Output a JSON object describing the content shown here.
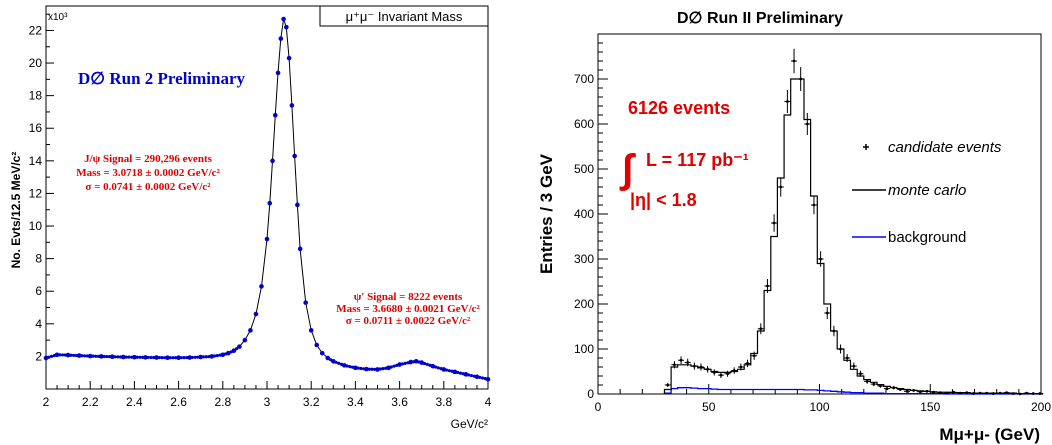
{
  "chart_data": [
    {
      "type": "scatter",
      "ylabel": "No. Evts/12.5 MeV/c²",
      "xlabel": "GeV/c²",
      "y_multiplier": "x10³",
      "title_box": "μ⁺μ⁻ Invariant Mass",
      "annotation_main": "D∅  Run 2 Preliminary",
      "xlim": [
        2,
        4
      ],
      "ylim": [
        0,
        23.5
      ],
      "xticks": [
        "2",
        "2.2",
        "2.4",
        "2.6",
        "2.8",
        "3",
        "3.2",
        "3.4",
        "3.6",
        "3.8",
        "4"
      ],
      "yticks": [
        "2",
        "4",
        "6",
        "8",
        "10",
        "12",
        "14",
        "16",
        "18",
        "20",
        "22"
      ],
      "jpsi_text": [
        "J/ψ Signal = 290,296 events",
        "Mass = 3.0718 ± 0.0002 GeV/c²",
        "σ = 0.0741 ± 0.0002 GeV/c²"
      ],
      "psi2s_text": [
        "ψ' Signal = 8222 events",
        "Mass = 3.6680 ± 0.0021 GeV/c²",
        "σ = 0.0711 ±  0.0022 GeV/c²"
      ],
      "color": "#0000cc",
      "annotation_color": "#e00000",
      "x": [
        2.0,
        2.05,
        2.1,
        2.15,
        2.2,
        2.25,
        2.3,
        2.35,
        2.4,
        2.45,
        2.5,
        2.55,
        2.6,
        2.65,
        2.7,
        2.75,
        2.8,
        2.825,
        2.85,
        2.875,
        2.9,
        2.925,
        2.95,
        2.975,
        3.0,
        3.0125,
        3.025,
        3.0375,
        3.05,
        3.0625,
        3.075,
        3.0875,
        3.1,
        3.1125,
        3.125,
        3.1375,
        3.15,
        3.175,
        3.2,
        3.225,
        3.25,
        3.275,
        3.3,
        3.35,
        3.4,
        3.45,
        3.5,
        3.55,
        3.6,
        3.65,
        3.675,
        3.7,
        3.75,
        3.8,
        3.85,
        3.9,
        3.95,
        4.0
      ],
      "y": [
        1.9,
        2.1,
        2.08,
        2.05,
        2.02,
        2.0,
        1.98,
        1.96,
        1.95,
        1.94,
        1.93,
        1.92,
        1.92,
        1.93,
        1.96,
        2.0,
        2.1,
        2.2,
        2.35,
        2.6,
        3.0,
        3.6,
        4.6,
        6.3,
        9.2,
        11.4,
        14.0,
        16.8,
        19.4,
        21.5,
        22.7,
        22.2,
        20.3,
        17.4,
        14.3,
        11.3,
        8.6,
        5.3,
        3.6,
        2.7,
        2.2,
        1.9,
        1.7,
        1.45,
        1.3,
        1.22,
        1.2,
        1.3,
        1.5,
        1.65,
        1.7,
        1.62,
        1.4,
        1.2,
        1.05,
        0.9,
        0.75,
        0.6
      ]
    },
    {
      "type": "bar",
      "title": "D∅ Run II Preliminary",
      "ylabel": "Entries / 3 GeV",
      "xlabel": "Mμ+μ- (GeV)",
      "xlim": [
        0,
        200
      ],
      "ylim": [
        0,
        800
      ],
      "xticks": [
        "0",
        "50",
        "100",
        "150",
        "200"
      ],
      "yticks": [
        "0",
        "100",
        "200",
        "300",
        "400",
        "500",
        "600",
        "700"
      ],
      "annotations": [
        "6126 events",
        "L = 117 pb⁻¹",
        "|η| < 1.8"
      ],
      "legend": [
        "candidate events",
        "monte carlo",
        "background"
      ],
      "legend_placement": "right",
      "colors": {
        "data": "#000000",
        "mc": "#000000",
        "background": "#0000ff",
        "annotation": "#e00000"
      },
      "bin_width": 3,
      "bin_start": 30,
      "mc_values": [
        10,
        60,
        65,
        65,
        62,
        58,
        55,
        50,
        48,
        48,
        50,
        55,
        65,
        90,
        140,
        230,
        350,
        480,
        620,
        700,
        700,
        610,
        440,
        290,
        200,
        140,
        100,
        75,
        55,
        40,
        32,
        26,
        21,
        17,
        14,
        12,
        10,
        8,
        7,
        6,
        5,
        4,
        4,
        3,
        3,
        3,
        2,
        2,
        2,
        2,
        2,
        2,
        2,
        1,
        1,
        1,
        1
      ],
      "data_values": [
        20,
        65,
        75,
        70,
        62,
        60,
        55,
        48,
        42,
        45,
        52,
        60,
        68,
        85,
        145,
        240,
        380,
        460,
        650,
        740,
        700,
        600,
        420,
        300,
        180,
        140,
        100,
        80,
        62,
        45,
        28,
        22,
        18,
        12,
        14,
        10,
        6,
        8,
        5,
        6,
        4,
        3,
        2,
        4,
        2,
        3,
        1,
        2,
        2,
        1,
        2,
        3,
        1,
        0,
        2,
        1,
        1
      ],
      "background_values": [
        2,
        12,
        14,
        14,
        13,
        12,
        12,
        11,
        10,
        10,
        10,
        10,
        10,
        10,
        10,
        10,
        10,
        10,
        10,
        10,
        10,
        9,
        9,
        8,
        7,
        6,
        5,
        4,
        3,
        3,
        2,
        2,
        2,
        1,
        1,
        1,
        1,
        1,
        1,
        1,
        1,
        1,
        0,
        0,
        0,
        0,
        0,
        0,
        0,
        0,
        0,
        0,
        0,
        0,
        0,
        0,
        0
      ]
    }
  ]
}
